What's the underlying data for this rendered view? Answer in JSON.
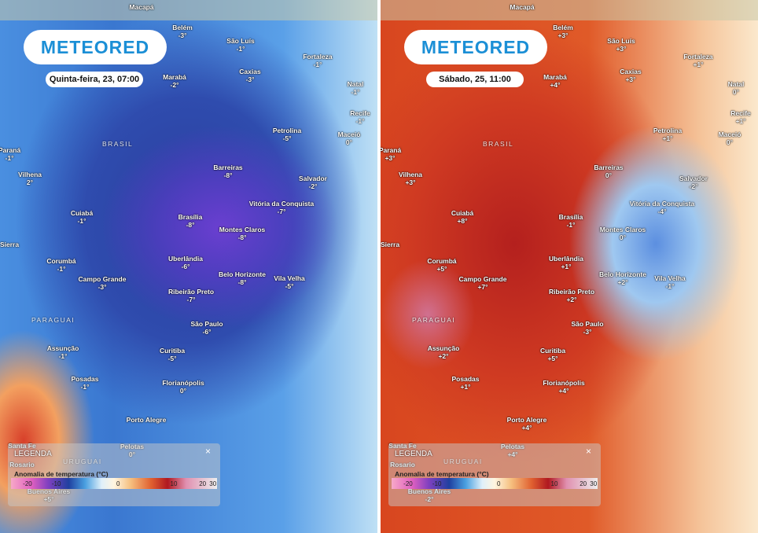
{
  "logo": "METEORED",
  "countries": [
    "BRASIL",
    "PARAGUAI",
    "URUGUAI"
  ],
  "legend": {
    "title": "LEGENDA",
    "close": "×",
    "subtitle": "Anomalia de temperatura (°C)",
    "ticks": [
      -20,
      -10,
      0,
      10,
      20,
      30
    ]
  },
  "panels": [
    {
      "date": "Quinta-feira, 23, 07:00",
      "cities": [
        {
          "name": "Macapá"
        },
        {
          "name": "Belém",
          "value": "-3°"
        },
        {
          "name": "São Luís",
          "value": "-1°"
        },
        {
          "name": "Fortaleza",
          "value": "-1°"
        },
        {
          "name": "Natal",
          "value": "-1°"
        },
        {
          "name": "Marabá",
          "value": "-2°"
        },
        {
          "name": "Caxias",
          "value": "-3°"
        },
        {
          "name": "Recife",
          "value": "-1°"
        },
        {
          "name": "Petrolina",
          "value": "-5°"
        },
        {
          "name": "Maceió",
          "value": "0°"
        },
        {
          "name": "Paraná",
          "value": "-1°"
        },
        {
          "name": "Vilhena",
          "value": "2°"
        },
        {
          "name": "Barreiras",
          "value": "-8°"
        },
        {
          "name": "Salvador",
          "value": "-2°"
        },
        {
          "name": "Cuiabá",
          "value": "-1°"
        },
        {
          "name": "Brasília",
          "value": "-8°"
        },
        {
          "name": "Vitória da Conquista",
          "value": "-7°"
        },
        {
          "name": "Montes Claros",
          "value": "-8°"
        },
        {
          "name": "Sierra"
        },
        {
          "name": "Corumbá",
          "value": "-1°"
        },
        {
          "name": "Uberlândia",
          "value": "-6°"
        },
        {
          "name": "Campo Grande",
          "value": "-3°"
        },
        {
          "name": "Belo Horizonte",
          "value": "-8°"
        },
        {
          "name": "Vila Velha",
          "value": "-5°"
        },
        {
          "name": "Ribeirão Preto",
          "value": "-7°"
        },
        {
          "name": "São Paulo",
          "value": "-6°"
        },
        {
          "name": "Assunção",
          "value": "-1°"
        },
        {
          "name": "Curitiba",
          "value": "-5°"
        },
        {
          "name": "Posadas",
          "value": "-1°"
        },
        {
          "name": "Florianópolis",
          "value": "0°"
        },
        {
          "name": "Porto Alegre"
        },
        {
          "name": "Santa Fe"
        },
        {
          "name": "Pelotas",
          "value": "0°"
        },
        {
          "name": "Rosario"
        },
        {
          "name": "Buenos Aires",
          "value": "+5°"
        }
      ]
    },
    {
      "date": "Sábado, 25, 11:00",
      "cities": [
        {
          "name": "Macapá"
        },
        {
          "name": "Belém",
          "value": "+3°"
        },
        {
          "name": "São Luís",
          "value": "+3°"
        },
        {
          "name": "Fortaleza",
          "value": "+1°"
        },
        {
          "name": "Natal",
          "value": "0°"
        },
        {
          "name": "Marabá",
          "value": "+4°"
        },
        {
          "name": "Caxias",
          "value": "+3°"
        },
        {
          "name": "Recife",
          "value": "+1°"
        },
        {
          "name": "Petrolina",
          "value": "+1°"
        },
        {
          "name": "Maceió",
          "value": "0°"
        },
        {
          "name": "Paraná",
          "value": "+3°"
        },
        {
          "name": "Vilhena",
          "value": "+3°"
        },
        {
          "name": "Barreiras",
          "value": "0°"
        },
        {
          "name": "Salvador",
          "value": "-2°"
        },
        {
          "name": "Cuiabá",
          "value": "+8°"
        },
        {
          "name": "Brasília",
          "value": "-1°"
        },
        {
          "name": "Vitória da Conquista",
          "value": "-4°"
        },
        {
          "name": "Montes Claros",
          "value": "0°"
        },
        {
          "name": "Sierra"
        },
        {
          "name": "Corumbá",
          "value": "+5°"
        },
        {
          "name": "Uberlândia",
          "value": "+1°"
        },
        {
          "name": "Campo Grande",
          "value": "+7°"
        },
        {
          "name": "Belo Horizonte",
          "value": "+2°"
        },
        {
          "name": "Vila Velha",
          "value": "-1°"
        },
        {
          "name": "Ribeirão Preto",
          "value": "+2°"
        },
        {
          "name": "São Paulo",
          "value": "-3°"
        },
        {
          "name": "Assunção",
          "value": "+2°"
        },
        {
          "name": "Curitiba",
          "value": "+5°"
        },
        {
          "name": "Posadas",
          "value": "+1°"
        },
        {
          "name": "Florianópolis",
          "value": "+4°"
        },
        {
          "name": "Porto Alegre",
          "value": "+4°"
        },
        {
          "name": "Santa Fe"
        },
        {
          "name": "Pelotas",
          "value": "+4°"
        },
        {
          "name": "Rosario"
        },
        {
          "name": "Buenos Aires",
          "value": "-2°"
        }
      ]
    }
  ]
}
